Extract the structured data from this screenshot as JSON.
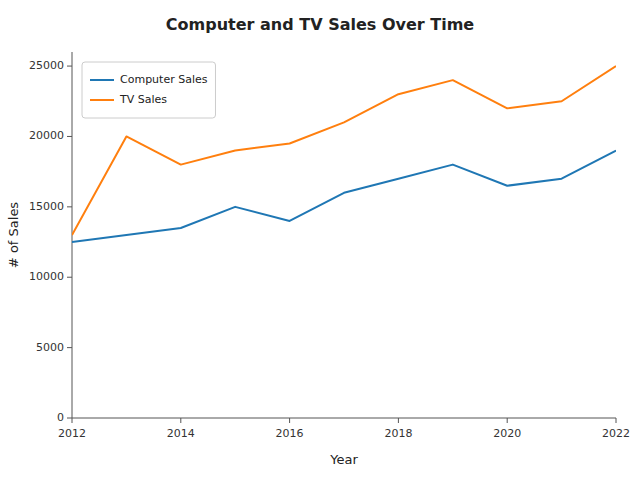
{
  "chart_data": {
    "type": "line",
    "title": "Computer and TV Sales Over Time",
    "xlabel": "Year",
    "ylabel": "# of Sales",
    "x": [
      2012,
      2013,
      2014,
      2015,
      2016,
      2017,
      2018,
      2019,
      2020,
      2021,
      2022
    ],
    "series": [
      {
        "name": "Computer Sales",
        "color": "#1f77b4",
        "values": [
          12500,
          13000,
          13500,
          15000,
          14000,
          16000,
          17000,
          18000,
          16500,
          17000,
          19000
        ]
      },
      {
        "name": "TV Sales",
        "color": "#ff7f0e",
        "values": [
          13000,
          20000,
          18000,
          19000,
          19500,
          21000,
          23000,
          24000,
          22000,
          22500,
          25000
        ]
      }
    ],
    "xlim": [
      2012,
      2022
    ],
    "xticks": [
      2012,
      2014,
      2016,
      2018,
      2020,
      2022
    ],
    "ylim": [
      0,
      26000
    ],
    "yticks": [
      0,
      5000,
      10000,
      15000,
      20000,
      25000
    ],
    "grid": false,
    "legend": "upper-left"
  }
}
